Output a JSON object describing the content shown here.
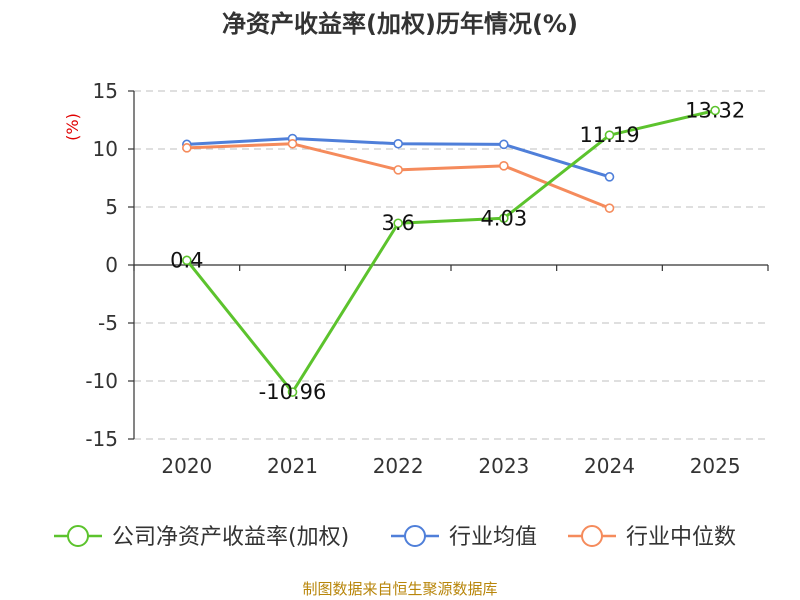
{
  "chart_data": {
    "type": "line",
    "title": "净资产收益率(加权)历年情况(%)",
    "unit_label": "(%)",
    "categories": [
      "2020",
      "2021",
      "2022",
      "2023",
      "2024",
      "2025"
    ],
    "ylim": [
      -15,
      15
    ],
    "yticks": [
      15,
      10,
      5,
      0,
      -5,
      -10,
      -15
    ],
    "ytick_labels": [
      "15",
      "10",
      "5",
      "0",
      "-5",
      "-10",
      "-15"
    ],
    "grid": true,
    "legend_position": "bottom",
    "series": [
      {
        "name": "公司净资产收益率(加权)",
        "color": "#5cc32d",
        "values": [
          0.4,
          -10.96,
          3.6,
          4.03,
          11.19,
          13.32
        ],
        "labels": [
          "0.4",
          "-10.96",
          "3.6",
          "4.03",
          "11.19",
          "13.32"
        ]
      },
      {
        "name": "行业均值",
        "color": "#4f7fd9",
        "values": [
          10.4,
          10.9,
          10.45,
          10.4,
          7.6,
          null
        ],
        "labels": []
      },
      {
        "name": "行业中位数",
        "color": "#f58b5c",
        "values": [
          10.1,
          10.45,
          8.2,
          8.55,
          4.9,
          null
        ],
        "labels": []
      }
    ]
  },
  "source": "制图数据来自恒生聚源数据库"
}
